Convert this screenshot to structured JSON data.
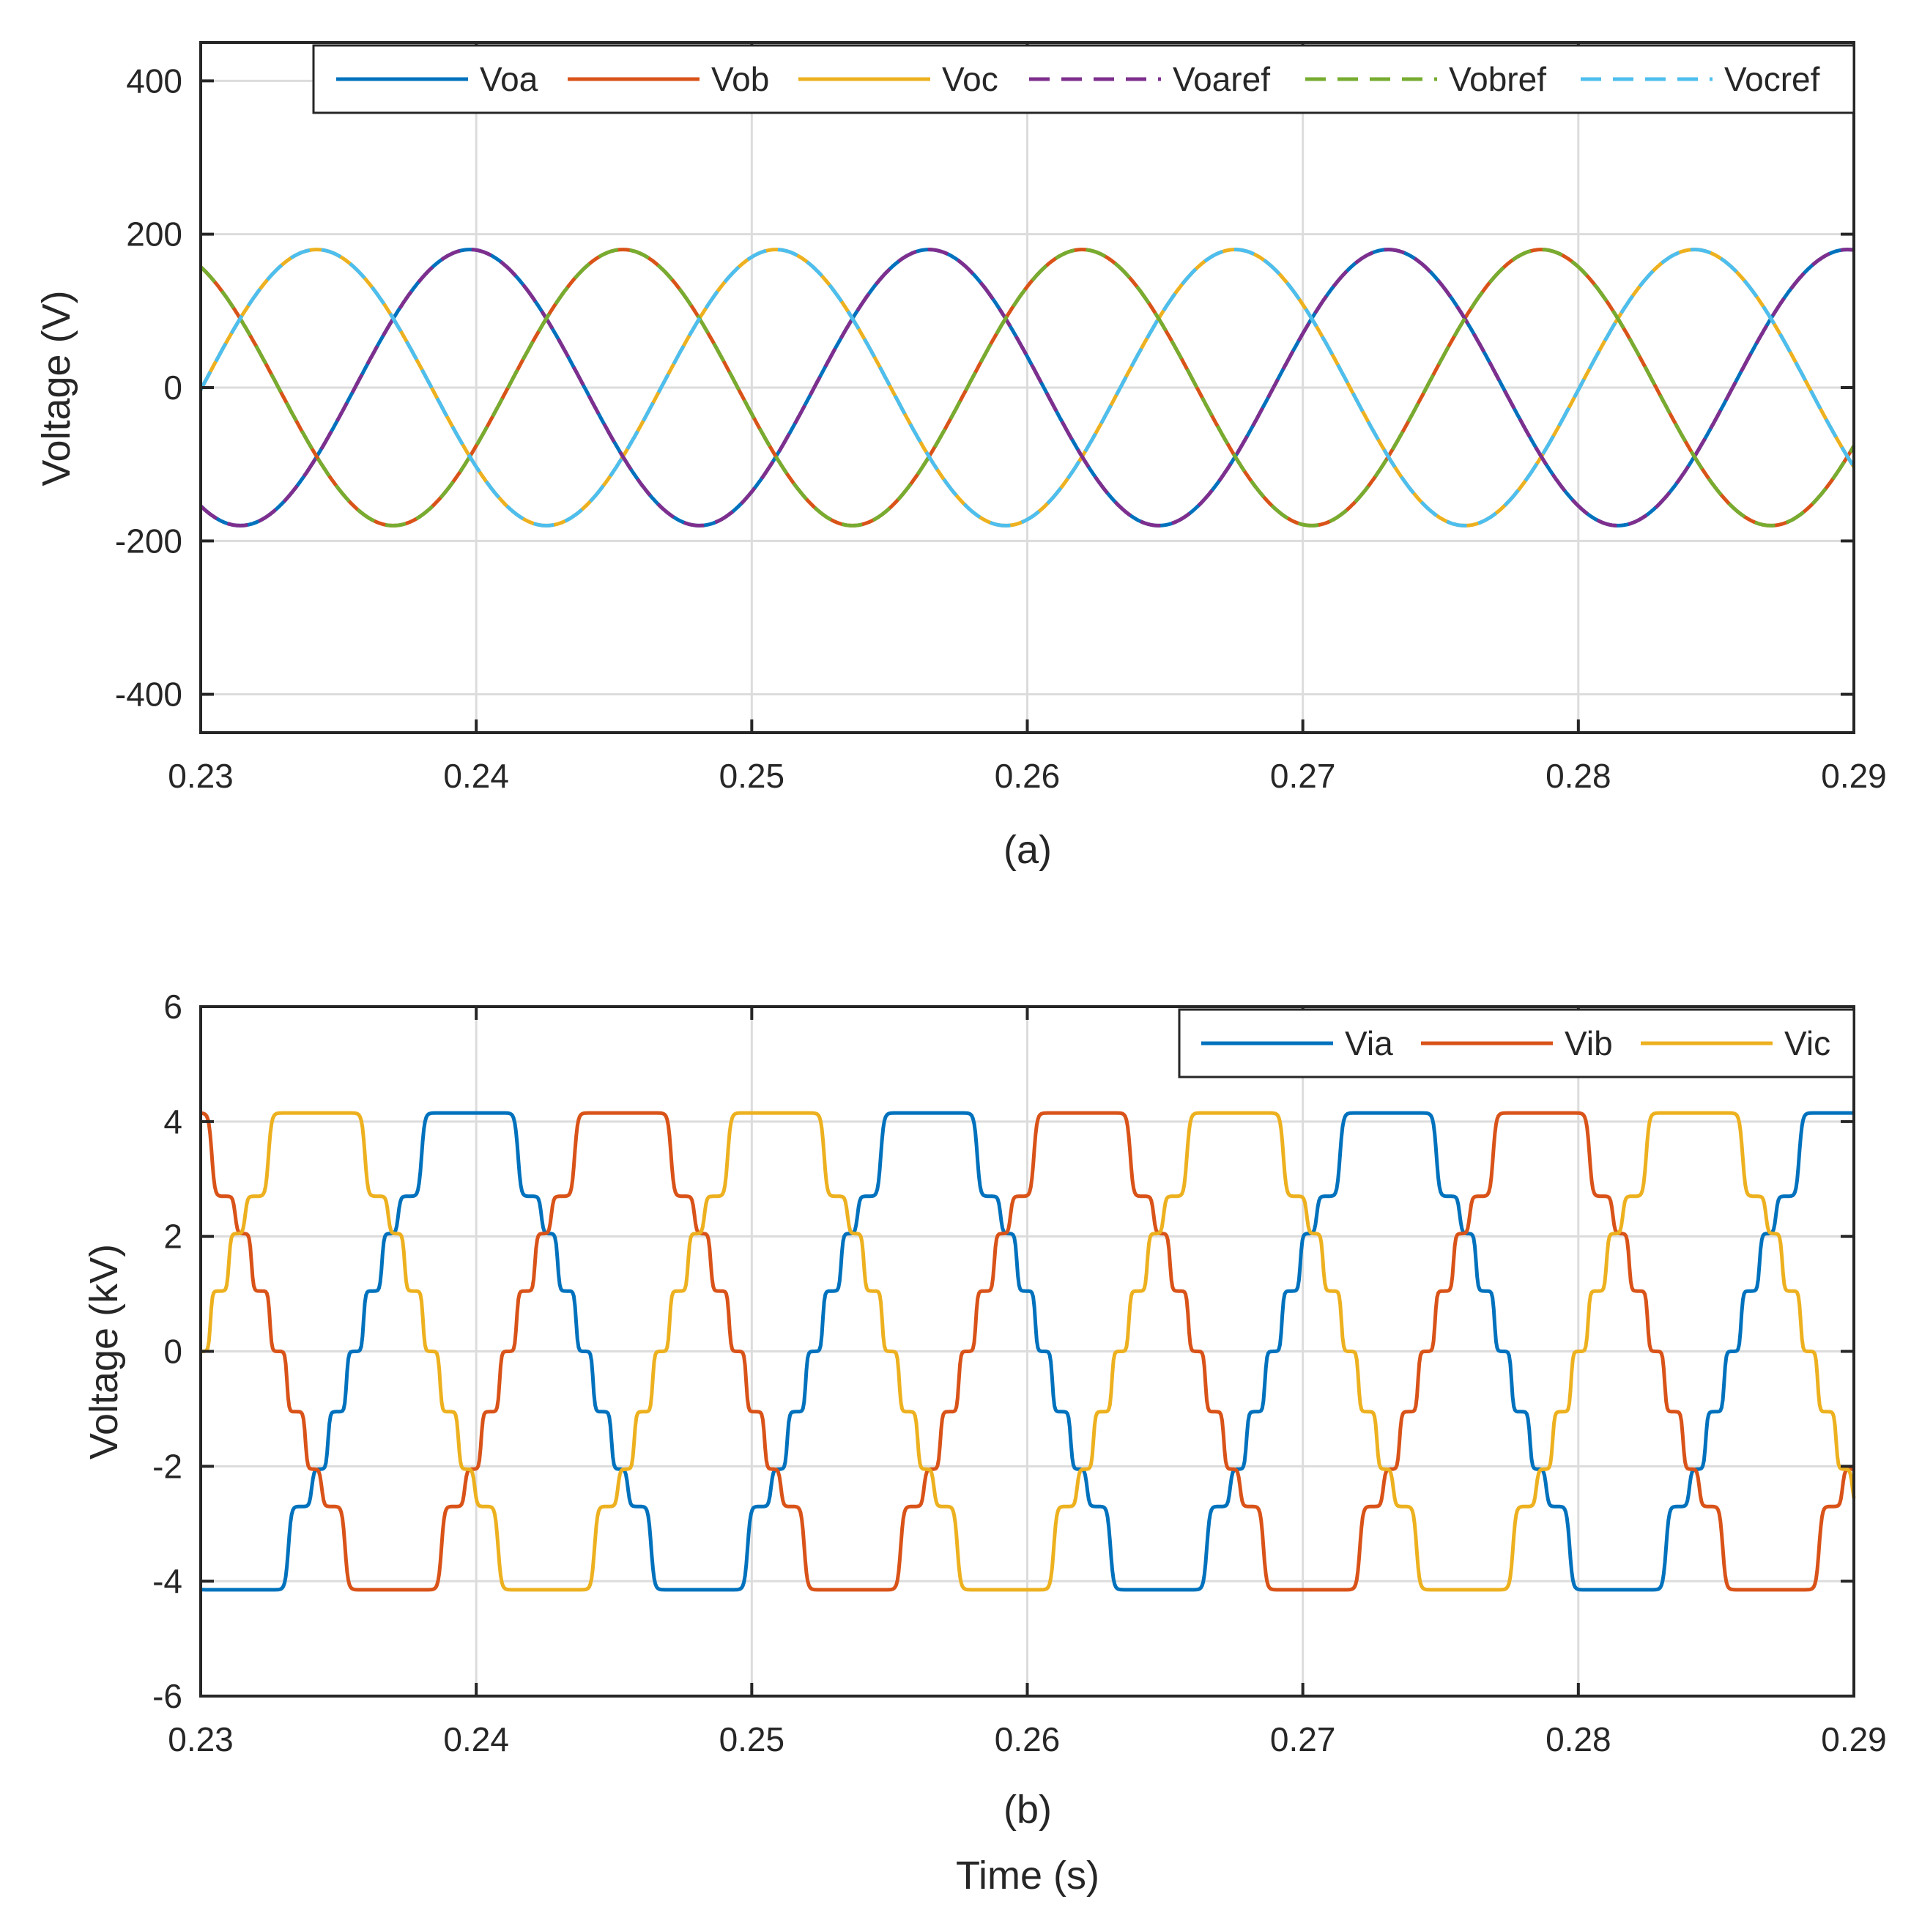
{
  "chart_data": [
    {
      "id": "a",
      "type": "line",
      "caption": "(a)",
      "title": "",
      "xlabel": "",
      "ylabel": "Voltage (V)",
      "xlim": [
        0.23,
        0.29
      ],
      "ylim": [
        -450,
        450
      ],
      "xticks": [
        0.23,
        0.24,
        0.25,
        0.26,
        0.27,
        0.28,
        0.29
      ],
      "xtick_labels": [
        "0.23",
        "0.24",
        "0.25",
        "0.26",
        "0.27",
        "0.28",
        "0.29"
      ],
      "yticks": [
        400,
        200,
        0,
        -200,
        -400
      ],
      "ytick_labels": [
        "400",
        "200",
        "0",
        "-200",
        "-400"
      ],
      "grid": true,
      "legend_position": "top-right",
      "frequency_hz": 60,
      "series": [
        {
          "name": "Voa",
          "color": "#0072BD",
          "dash": "solid",
          "amplitude": 180,
          "phase_deg": 0
        },
        {
          "name": "Vob",
          "color": "#D95319",
          "dash": "solid",
          "amplitude": 180,
          "phase_deg": -120
        },
        {
          "name": "Voc",
          "color": "#EDB120",
          "dash": "solid",
          "amplitude": 180,
          "phase_deg": 120
        },
        {
          "name": "Voaref",
          "color": "#7E2F8E",
          "dash": "dashed",
          "amplitude": 180,
          "phase_deg": 0
        },
        {
          "name": "Vobref",
          "color": "#77AC30",
          "dash": "dashed",
          "amplitude": 180,
          "phase_deg": -120
        },
        {
          "name": "Vocref",
          "color": "#4DBEEE",
          "dash": "dashed",
          "amplitude": 180,
          "phase_deg": 120
        }
      ]
    },
    {
      "id": "b",
      "type": "line",
      "caption": "(b)",
      "title": "",
      "xlabel": "Time (s)",
      "ylabel": "Voltage (kV)",
      "xlim": [
        0.23,
        0.29
      ],
      "ylim": [
        -6,
        6
      ],
      "xticks": [
        0.23,
        0.24,
        0.25,
        0.26,
        0.27,
        0.28,
        0.29
      ],
      "xtick_labels": [
        "0.23",
        "0.24",
        "0.25",
        "0.26",
        "0.27",
        "0.28",
        "0.29"
      ],
      "yticks": [
        6,
        4,
        2,
        0,
        -2,
        -4,
        -6
      ],
      "ytick_labels": [
        "6",
        "4",
        "2",
        "0",
        "-2",
        "-4",
        "-6"
      ],
      "grid": true,
      "legend_position": "top-right",
      "frequency_hz": 60,
      "multilevel_staircase_kV": [
        0,
        1.05,
        2.05,
        2.7,
        4.15
      ],
      "series": [
        {
          "name": "Via",
          "color": "#0072BD",
          "dash": "solid",
          "phase_deg": 0
        },
        {
          "name": "Vib",
          "color": "#D95319",
          "dash": "solid",
          "phase_deg": -120
        },
        {
          "name": "Vic",
          "color": "#EDB120",
          "dash": "solid",
          "phase_deg": 120
        }
      ]
    }
  ]
}
